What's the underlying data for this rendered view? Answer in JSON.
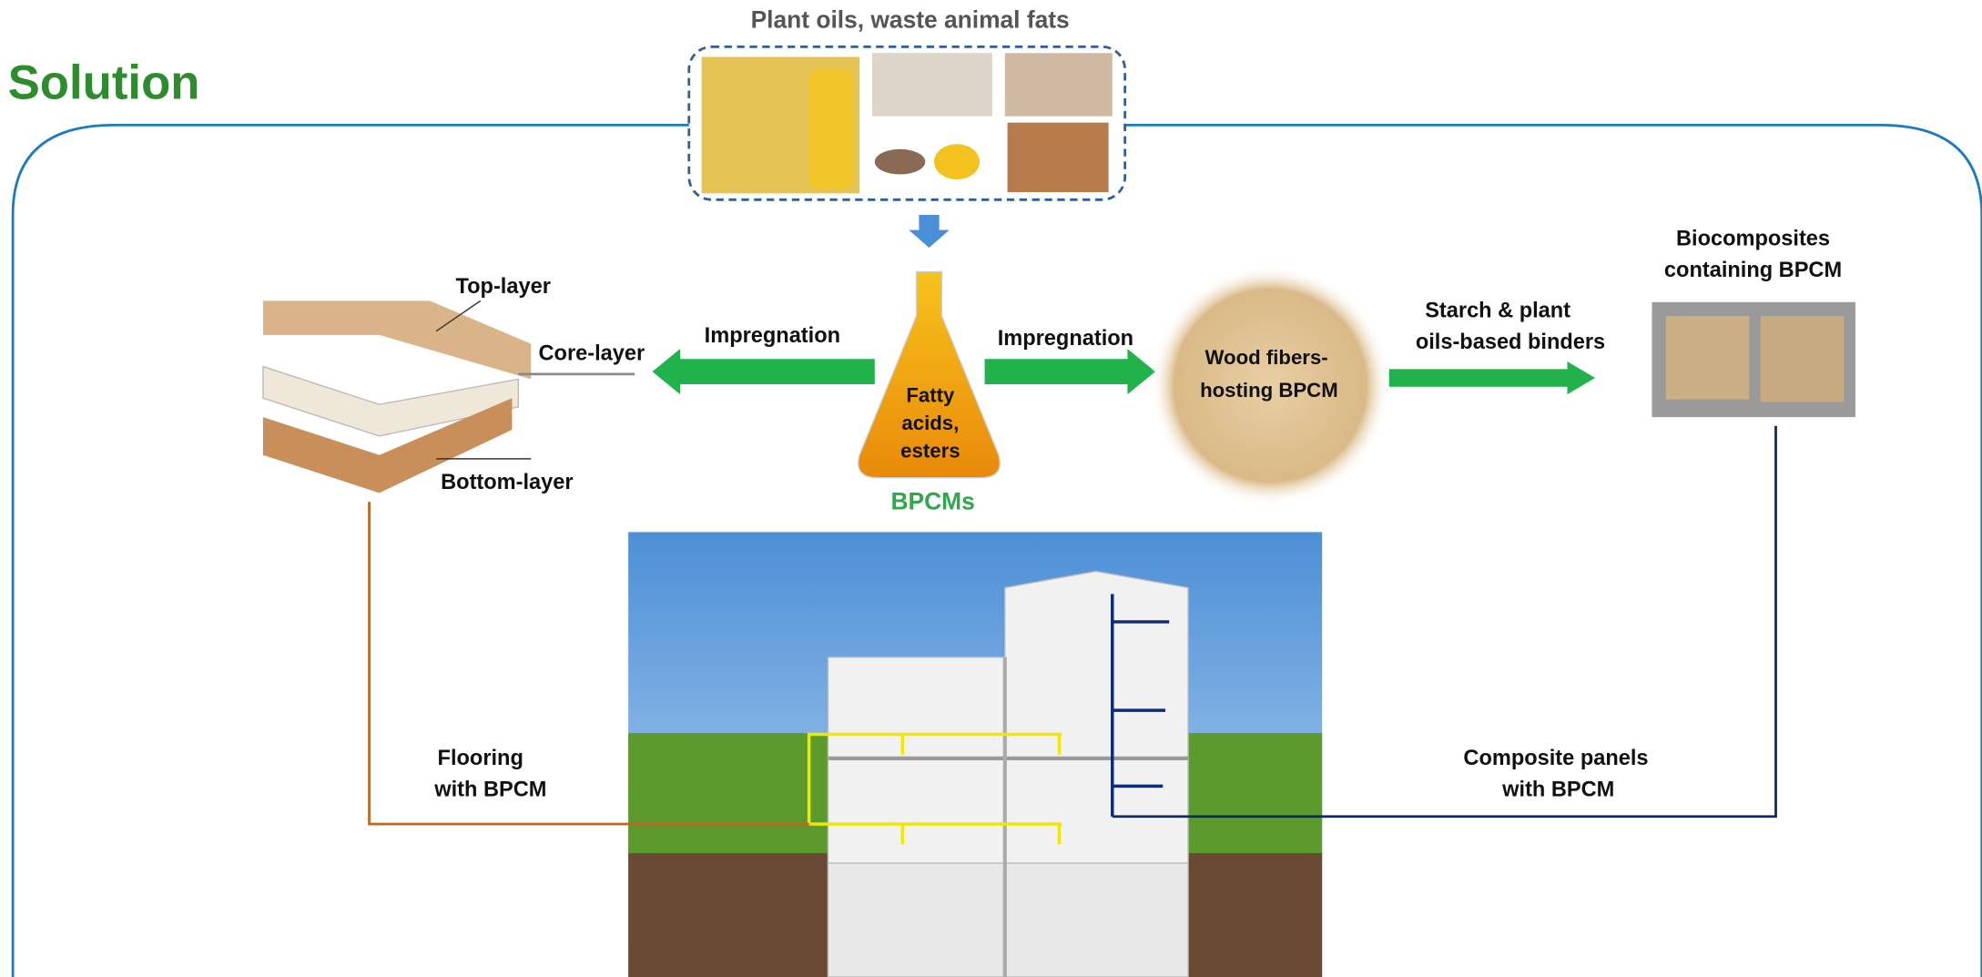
{
  "header": {
    "title": "Solution"
  },
  "source": {
    "label": "Plant oils, waste animal fats"
  },
  "flooring": {
    "layers": [
      "Top-layer",
      "Core-layer",
      "Bottom-layer"
    ],
    "caption": [
      "Flooring",
      "with BPCM"
    ]
  },
  "impregnation": [
    "Impregnation",
    "Impregnation"
  ],
  "flask": {
    "content": [
      "Fatty",
      "acids,",
      "esters"
    ],
    "label": "BPCMs"
  },
  "wood": {
    "label": [
      "Wood fibers-",
      "hosting BPCM"
    ]
  },
  "binders": {
    "label": [
      "Starch & plant",
      "oils-based  binders"
    ]
  },
  "biocomposites": {
    "label": [
      "Biocomposites",
      "containing BPCM"
    ]
  },
  "panels": {
    "caption": [
      "Composite panels",
      "with BPCM"
    ]
  }
}
